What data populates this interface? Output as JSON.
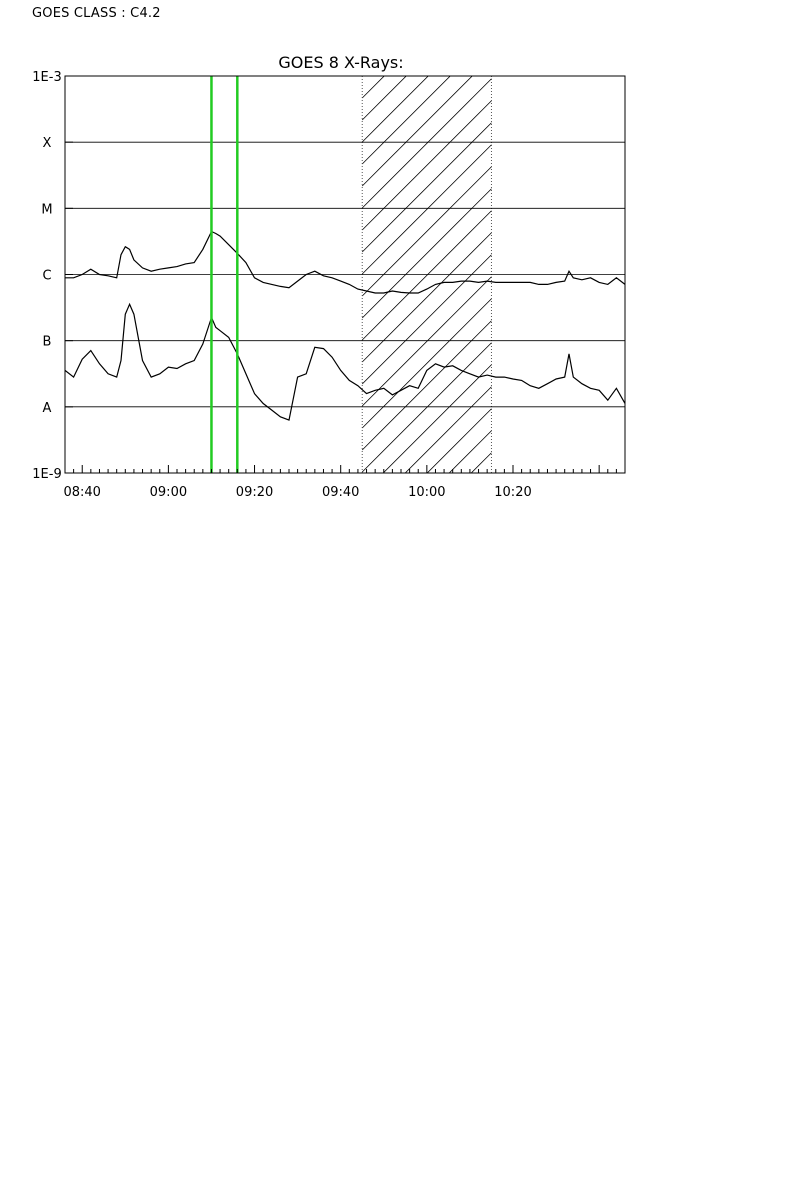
{
  "header": {
    "goes_class": "GOES CLASS : C4.2"
  },
  "chart_data": {
    "type": "line",
    "title": "GOES 8 X-Rays:",
    "xlabel": "",
    "ylabel": "",
    "y_scale": "log",
    "ylim": [
      "1E-9",
      "1E-3"
    ],
    "y_ticks": [
      {
        "label": "1E-3",
        "exponent": -3
      },
      {
        "label": "X",
        "exponent": -4
      },
      {
        "label": "M",
        "exponent": -5
      },
      {
        "label": "C",
        "exponent": -6
      },
      {
        "label": "B",
        "exponent": -7
      },
      {
        "label": "A",
        "exponent": -8
      },
      {
        "label": "1E-9",
        "exponent": -9
      }
    ],
    "x_range": [
      "08:36",
      "10:46"
    ],
    "x_ticks": [
      "08:40",
      "09:00",
      "09:20",
      "09:40",
      "10:00",
      "10:20"
    ],
    "grid": "horizontal lines at class boundaries",
    "series": [
      {
        "color": "#000000",
        "x": [
          "08:36",
          "08:38",
          "08:40",
          "08:42",
          "08:44",
          "08:46",
          "08:48",
          "08:49",
          "08:50",
          "08:51",
          "08:52",
          "08:54",
          "08:56",
          "08:58",
          "09:00",
          "09:02",
          "09:04",
          "09:06",
          "09:08",
          "09:10",
          "09:11",
          "09:12",
          "09:14",
          "09:16",
          "09:18",
          "09:20",
          "09:22",
          "09:24",
          "09:26",
          "09:28",
          "09:30",
          "09:32",
          "09:34",
          "09:36",
          "09:38",
          "09:40",
          "09:42",
          "09:44",
          "09:46",
          "09:48",
          "09:50",
          "09:52",
          "09:54",
          "09:56",
          "09:58",
          "10:00",
          "10:02",
          "10:04",
          "10:06",
          "10:08",
          "10:10",
          "10:12",
          "10:14",
          "10:16",
          "10:18",
          "10:20",
          "10:22",
          "10:24",
          "10:26",
          "10:28",
          "10:30",
          "10:32",
          "10:33",
          "10:34",
          "10:36",
          "10:38",
          "10:40",
          "10:42",
          "10:44",
          "10:46"
        ],
        "log_flux": [
          -6.05,
          -6.05,
          -6.0,
          -5.92,
          -6.0,
          -6.02,
          -6.05,
          -5.7,
          -5.58,
          -5.62,
          -5.78,
          -5.9,
          -5.95,
          -5.92,
          -5.9,
          -5.88,
          -5.84,
          -5.82,
          -5.62,
          -5.35,
          -5.38,
          -5.42,
          -5.55,
          -5.68,
          -5.82,
          -6.05,
          -6.12,
          -6.15,
          -6.18,
          -6.2,
          -6.1,
          -6.0,
          -5.95,
          -6.02,
          -6.05,
          -6.1,
          -6.15,
          -6.22,
          -6.25,
          -6.28,
          -6.28,
          -6.25,
          -6.27,
          -6.28,
          -6.28,
          -6.22,
          -6.15,
          -6.12,
          -6.12,
          -6.1,
          -6.1,
          -6.12,
          -6.1,
          -6.12,
          -6.12,
          -6.12,
          -6.12,
          -6.12,
          -6.15,
          -6.15,
          -6.12,
          -6.1,
          -5.95,
          -6.05,
          -6.08,
          -6.05,
          -6.12,
          -6.15,
          -6.05,
          -6.15
        ]
      },
      {
        "color": "#000000",
        "x": [
          "08:36",
          "08:38",
          "08:40",
          "08:42",
          "08:44",
          "08:46",
          "08:48",
          "08:49",
          "08:50",
          "08:51",
          "08:52",
          "08:54",
          "08:56",
          "08:58",
          "09:00",
          "09:02",
          "09:04",
          "09:06",
          "09:08",
          "09:10",
          "09:11",
          "09:12",
          "09:14",
          "09:16",
          "09:18",
          "09:20",
          "09:22",
          "09:24",
          "09:26",
          "09:28",
          "09:30",
          "09:32",
          "09:34",
          "09:36",
          "09:38",
          "09:40",
          "09:42",
          "09:44",
          "09:46",
          "09:48",
          "09:50",
          "09:52",
          "09:54",
          "09:56",
          "09:58",
          "10:00",
          "10:02",
          "10:04",
          "10:06",
          "10:08",
          "10:10",
          "10:12",
          "10:14",
          "10:16",
          "10:18",
          "10:20",
          "10:22",
          "10:24",
          "10:26",
          "10:28",
          "10:30",
          "10:32",
          "10:33",
          "10:34",
          "10:36",
          "10:38",
          "10:40",
          "10:42",
          "10:44",
          "10:46"
        ],
        "log_flux": [
          -7.45,
          -7.55,
          -7.28,
          -7.15,
          -7.35,
          -7.5,
          -7.55,
          -7.3,
          -6.6,
          -6.45,
          -6.6,
          -7.3,
          -7.55,
          -7.5,
          -7.4,
          -7.42,
          -7.35,
          -7.3,
          -7.05,
          -6.65,
          -6.8,
          -6.85,
          -6.95,
          -7.2,
          -7.5,
          -7.8,
          -7.95,
          -8.05,
          -8.15,
          -8.2,
          -7.55,
          -7.5,
          -7.1,
          -7.12,
          -7.25,
          -7.45,
          -7.6,
          -7.68,
          -7.8,
          -7.75,
          -7.72,
          -7.82,
          -7.75,
          -7.68,
          -7.72,
          -7.45,
          -7.35,
          -7.4,
          -7.38,
          -7.45,
          -7.5,
          -7.55,
          -7.52,
          -7.55,
          -7.55,
          -7.58,
          -7.6,
          -7.68,
          -7.72,
          -7.65,
          -7.58,
          -7.55,
          -7.2,
          -7.55,
          -7.65,
          -7.72,
          -7.75,
          -7.9,
          -7.72,
          -7.95
        ]
      }
    ],
    "markers": [
      {
        "type": "vertical_line",
        "x": "09:10",
        "color": "#22cc22"
      },
      {
        "type": "vertical_line",
        "x": "09:16",
        "color": "#22cc22"
      }
    ],
    "shaded_region": {
      "x_start": "09:45",
      "x_end": "10:15",
      "pattern": "diagonal hatch",
      "border": "dotted"
    }
  }
}
